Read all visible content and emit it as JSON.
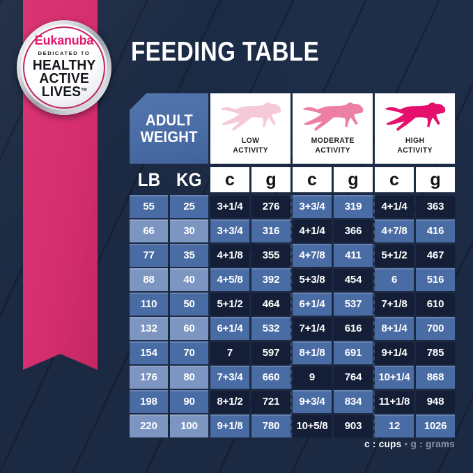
{
  "title": "FEEDING TABLE",
  "badge": {
    "brand": "Eukanuba",
    "tagline": "DEDICATED TO",
    "headline_line1": "HEALTHY",
    "headline_line2": "ACTIVE",
    "headline_line3": "LIVES",
    "trademark": "TM"
  },
  "table": {
    "corner_header": {
      "line1": "ADULT",
      "line2": "WEIGHT"
    },
    "activity_columns": [
      {
        "label_line1": "LOW",
        "label_line2": "ACTIVITY",
        "dog_color": "#F6C9D8"
      },
      {
        "label_line1": "MODERATE",
        "label_line2": "ACTIVITY",
        "dog_color": "#EC7FA3"
      },
      {
        "label_line1": "HIGH",
        "label_line2": "ACTIVITY",
        "dog_color": "#E5106E"
      }
    ],
    "unit_headers": {
      "lb": "LB",
      "kg": "KG",
      "cups": "c",
      "grams": "g"
    }
  },
  "chart_data": {
    "type": "table",
    "title": "FEEDING TABLE",
    "columns": [
      "LB",
      "KG",
      "Low Activity cups",
      "Low Activity grams",
      "Moderate Activity cups",
      "Moderate Activity grams",
      "High Activity cups",
      "High Activity grams"
    ],
    "rows": [
      [
        "55",
        "25",
        "3+1/4",
        "276",
        "3+3/4",
        "319",
        "4+1/4",
        "363"
      ],
      [
        "66",
        "30",
        "3+3/4",
        "316",
        "4+1/4",
        "366",
        "4+7/8",
        "416"
      ],
      [
        "77",
        "35",
        "4+1/8",
        "355",
        "4+7/8",
        "411",
        "5+1/2",
        "467"
      ],
      [
        "88",
        "40",
        "4+5/8",
        "392",
        "5+3/8",
        "454",
        "6",
        "516"
      ],
      [
        "110",
        "50",
        "5+1/2",
        "464",
        "6+1/4",
        "537",
        "7+1/8",
        "610"
      ],
      [
        "132",
        "60",
        "6+1/4",
        "532",
        "7+1/4",
        "616",
        "8+1/4",
        "700"
      ],
      [
        "154",
        "70",
        "7",
        "597",
        "8+1/8",
        "691",
        "9+1/4",
        "785"
      ],
      [
        "176",
        "80",
        "7+3/4",
        "660",
        "9",
        "764",
        "10+1/4",
        "868"
      ],
      [
        "198",
        "90",
        "8+1/2",
        "721",
        "9+3/4",
        "834",
        "11+1/8",
        "948"
      ],
      [
        "220",
        "100",
        "9+1/8",
        "780",
        "10+5/8",
        "903",
        "12",
        "1026"
      ]
    ]
  },
  "legend": {
    "cups": "c : cups",
    "separator": "•",
    "grams": "g : grams"
  },
  "colors": {
    "background": "#1B2942",
    "ribbon_pink": "#D62E6F",
    "brand_pink": "#E3196E",
    "cell_dark": "#141F37",
    "cell_medium": "#4A6CA4",
    "cell_light": "#7D95C1",
    "header_white": "#FFFFFF"
  }
}
